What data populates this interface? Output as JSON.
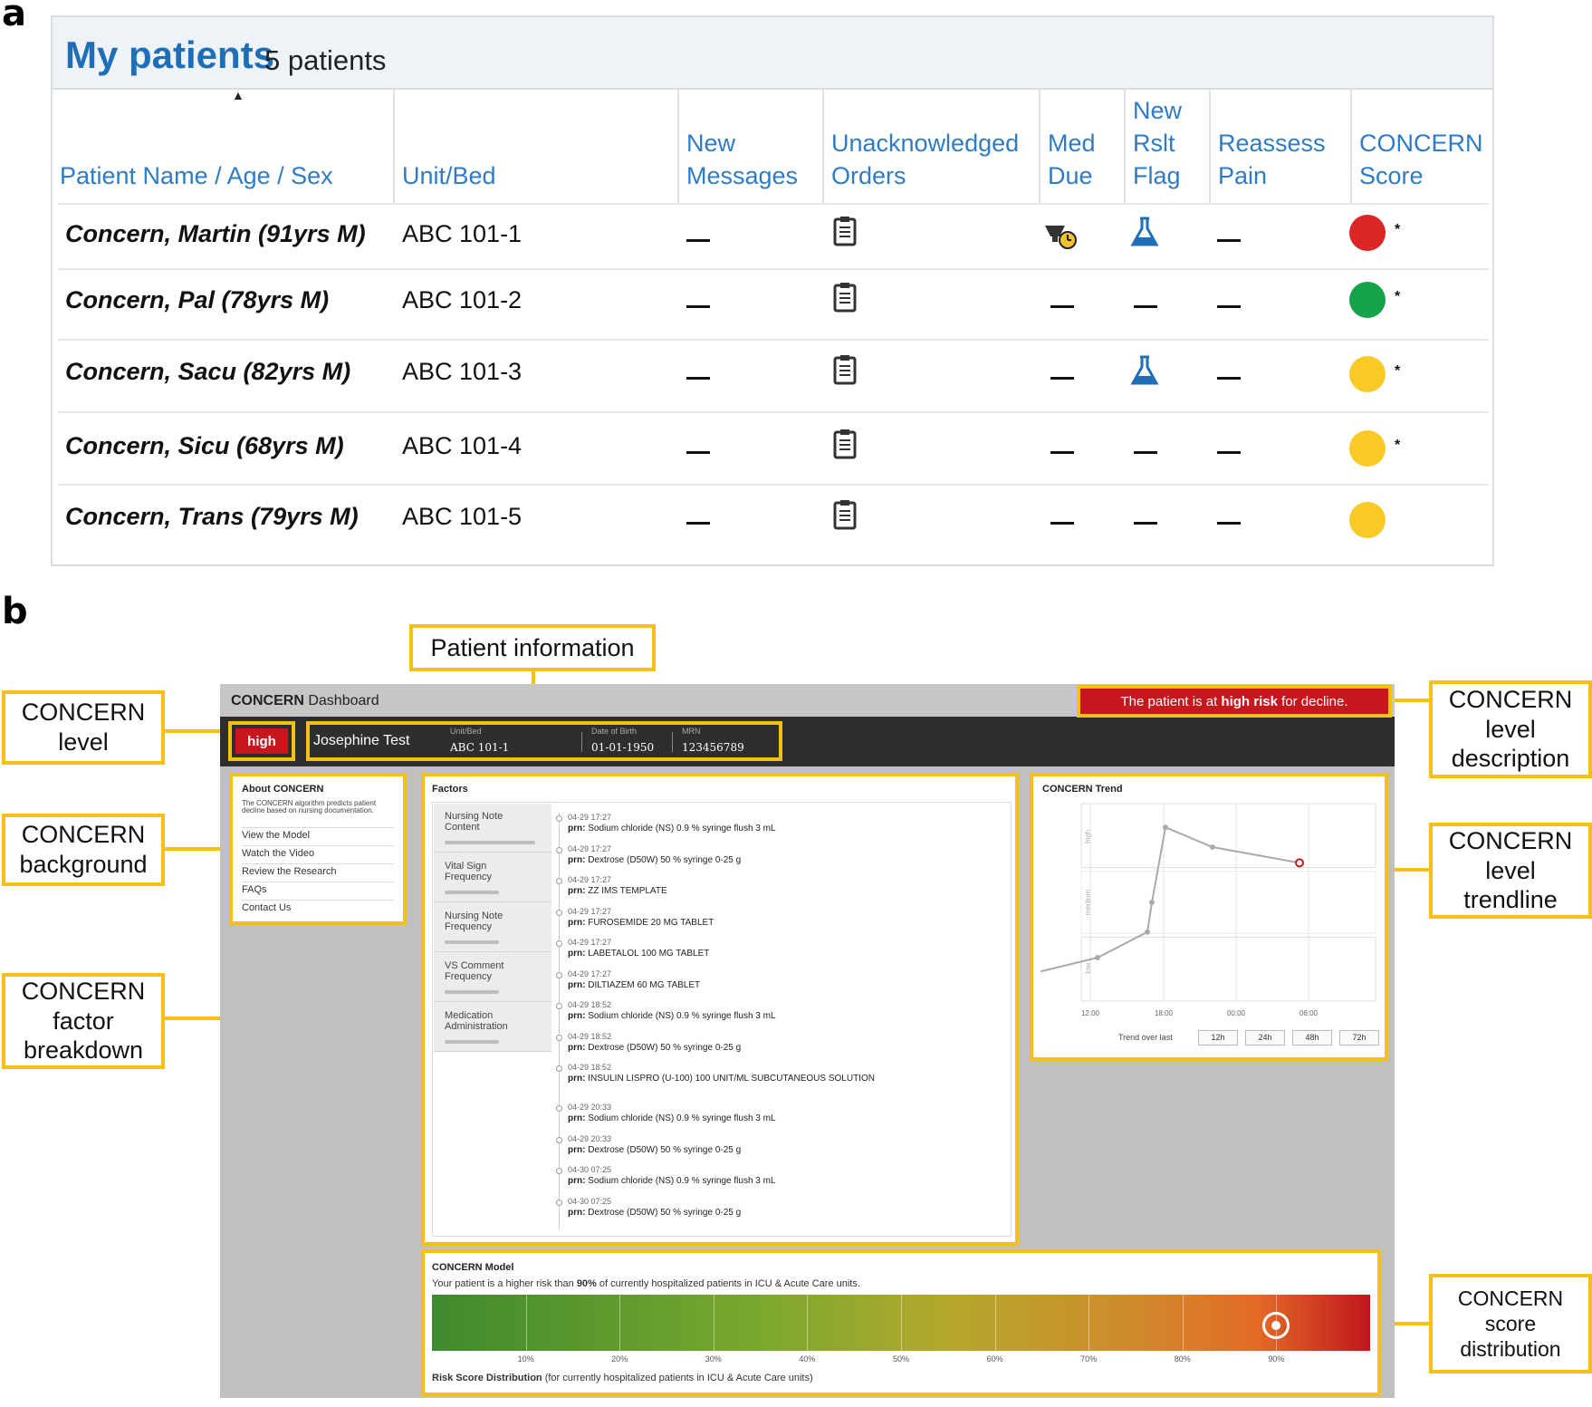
{
  "labels": {
    "a": "a",
    "b": "b"
  },
  "panel_a": {
    "title": "My patients",
    "count": "5 patients",
    "sort_arrow": "▲",
    "columns": [
      "Patient Name / Age / Sex",
      "Unit/Bed",
      "New Messages",
      "Unacknowledged Orders",
      "Med Due",
      "New Rslt Flag",
      "Reassess Pain",
      "CONCERN Score"
    ],
    "rows": [
      {
        "name": "Concern, Martin (91yrs M)",
        "bed": "ABC 101-1",
        "score_color": "#dc2626",
        "asterisk": "*"
      },
      {
        "name": "Concern, Pal (78yrs M)",
        "bed": "ABC 101-2",
        "score_color": "#16a34a",
        "asterisk": "*"
      },
      {
        "name": "Concern, Sacu (82yrs M)",
        "bed": "ABC 101-3",
        "score_color": "#f9c925",
        "asterisk": "*"
      },
      {
        "name": "Concern, Sicu (68yrs M)",
        "bed": "ABC 101-4",
        "score_color": "#f9c925",
        "asterisk": "*"
      },
      {
        "name": "Concern, Trans (79yrs M)",
        "bed": "ABC 101-5",
        "score_color": "#f9c925",
        "asterisk": ""
      }
    ]
  },
  "panel_b": {
    "annotations": {
      "patient_info": "Patient information",
      "level": "CONCERN level",
      "background": "CONCERN background",
      "factor": "CONCERN factor breakdown",
      "level_desc": "CONCERN level description",
      "trendline": "CONCERN level trendline",
      "score_dist": "CONCERN score distribution"
    },
    "dashboard": {
      "brand": "CONCERN",
      "title_rest": "Dashboard",
      "alert_prefix": "The patient is at",
      "alert_bold": "high risk",
      "alert_suffix": "for decline.",
      "level": "high",
      "patient_name": "Josephine Test",
      "unit_label": "Unit/Bed",
      "unit_value": "ABC 101-1",
      "dob_label": "Date of Birth",
      "dob_value": "01-01-1950",
      "mrn_label": "MRN",
      "mrn_value": "123456789"
    },
    "about": {
      "heading": "About CONCERN",
      "desc": "The CONCERN algorithm predicts patient decline based on nursing documentation.",
      "links": [
        "View the Model",
        "Watch the Video",
        "Review the Research",
        "FAQs",
        "Contact Us"
      ]
    },
    "factors": {
      "heading": "Factors",
      "tabs": [
        "Nursing Note Content",
        "Vital Sign Frequency",
        "Nursing Note Frequency",
        "VS Comment Frequency",
        "Medication Administration"
      ],
      "entries": [
        {
          "time": "04-29 17:27",
          "text": "Sodium chloride (NS) 0.9 % syringe flush 3 mL"
        },
        {
          "time": "04-29 17:27",
          "text": "Dextrose (D50W) 50 % syringe 0-25 g"
        },
        {
          "time": "04-29 17:27",
          "text": "ZZ IMS TEMPLATE"
        },
        {
          "time": "04-29 17:27",
          "text": "FUROSEMIDE 20 MG TABLET"
        },
        {
          "time": "04-29 17:27",
          "text": "LABETALOL 100 MG TABLET"
        },
        {
          "time": "04-29 17:27",
          "text": "DILTIAZEM 60 MG TABLET"
        },
        {
          "time": "04-29 18:52",
          "text": "Sodium chloride (NS) 0.9 % syringe flush 3 mL"
        },
        {
          "time": "04-29 18:52",
          "text": "Dextrose (D50W) 50 % syringe 0-25 g"
        },
        {
          "time": "04-29 18:52",
          "text": "INSULIN LISPRO (U-100) 100 UNIT/ML SUBCUTANEOUS SOLUTION"
        },
        {
          "time": "04-29 20:33",
          "text": "Sodium chloride (NS) 0.9 % syringe flush 3 mL"
        },
        {
          "time": "04-29 20:33",
          "text": "Dextrose (D50W) 50 % syringe 0-25 g"
        },
        {
          "time": "04-30 07:25",
          "text": "Sodium chloride (NS) 0.9 % syringe flush 3 mL"
        },
        {
          "time": "04-30 07:25",
          "text": "Dextrose (D50W) 50 % syringe 0-25 g"
        }
      ],
      "prn": "prn:"
    },
    "trend": {
      "heading": "CONCERN Trend",
      "bands": [
        "high",
        "medium",
        "low"
      ],
      "x_ticks": [
        "12:00",
        "18:00",
        "00:00",
        "06:00"
      ],
      "trend_label": "Trend over last",
      "buttons": [
        "12h",
        "24h",
        "48h",
        "72h"
      ]
    },
    "model": {
      "heading": "CONCERN Model",
      "sentence_pre": "Your patient is a higher risk than",
      "sentence_pct": "90%",
      "sentence_post": "of currently hospitalized patients in ICU & Acute Care units.",
      "percentile": 90,
      "ticks": [
        "10%",
        "20%",
        "30%",
        "40%",
        "50%",
        "60%",
        "70%",
        "80%",
        "90%"
      ],
      "footer_bold": "Risk Score Distribution",
      "footer_rest": "(for currently hospitalized patients in ICU & Acute Care units)"
    }
  },
  "chart_data": {
    "type": "line",
    "title": "CONCERN Trend",
    "x": [
      "10:30",
      "12:00",
      "15:00",
      "17:55",
      "18:30",
      "21:40",
      "06:30"
    ],
    "values": [
      0.15,
      0.22,
      0.35,
      0.5,
      0.88,
      0.78,
      0.7
    ],
    "ylabel": "",
    "y_categories": [
      "low",
      "medium",
      "high"
    ],
    "xlabel": "",
    "x_ticks": [
      "12:00",
      "18:00",
      "00:00",
      "06:00"
    ],
    "ylim": [
      0,
      1
    ]
  }
}
